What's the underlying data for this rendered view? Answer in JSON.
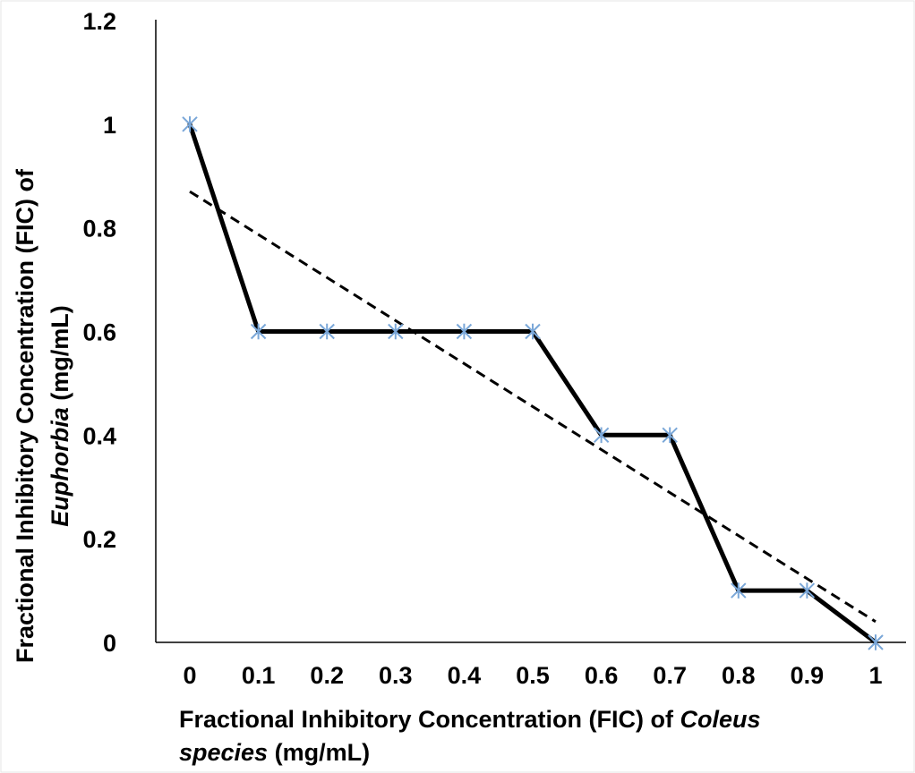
{
  "chart_data": {
    "type": "line",
    "title": "",
    "xlabel": {
      "line1_prefix": "Fractional Inhibitory Concentration (FIC) of ",
      "line1_italic": "Coleus",
      "line2_italic": "species",
      "line2_suffix": " (mg/mL)"
    },
    "ylabel": {
      "line1": "Fractional Inhibitory Concentration (FIC) of",
      "line2_italic": "Euphorbia",
      "line2_suffix": " (mg/mL)"
    },
    "xlim": [
      0,
      1
    ],
    "ylim": [
      0,
      1.2
    ],
    "x_ticks": [
      "0",
      "0.1",
      "0.2",
      "0.3",
      "0.4",
      "0.5",
      "0.6",
      "0.7",
      "0.8",
      "0.9",
      "1"
    ],
    "y_ticks": [
      "0",
      "0.2",
      "0.4",
      "0.6",
      "0.8",
      "1",
      "1.2"
    ],
    "grid": false,
    "legend": "none",
    "series": [
      {
        "style": "solid",
        "color": "#000000",
        "marker": "asterisk",
        "marker_color": "#7aa7d8",
        "x": [
          0,
          0.1,
          0.2,
          0.3,
          0.4,
          0.5,
          0.6,
          0.7,
          0.8,
          0.9,
          1
        ],
        "y": [
          1,
          0.6,
          0.6,
          0.6,
          0.6,
          0.6,
          0.4,
          0.4,
          0.1,
          0.1,
          0
        ]
      },
      {
        "style": "dashed",
        "color": "#000000",
        "x": [
          0,
          1
        ],
        "y": [
          0.87,
          0.04
        ]
      }
    ]
  }
}
